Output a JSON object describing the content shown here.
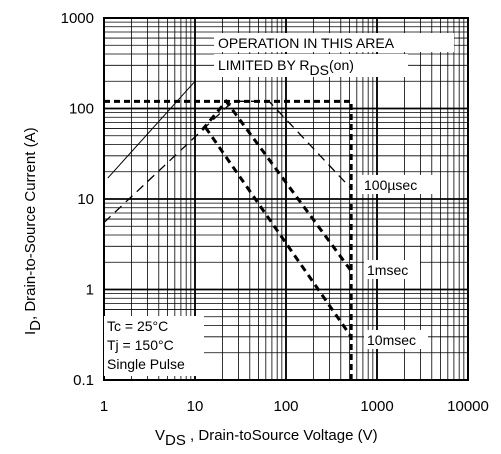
{
  "chart_data": {
    "type": "line",
    "x_scale": "log",
    "y_scale": "log",
    "xlim": [
      1,
      10000
    ],
    "ylim": [
      0.1,
      1000
    ],
    "x_ticks": [
      "1",
      "10",
      "100",
      "1000",
      "10000"
    ],
    "y_ticks": [
      "0.1",
      "1",
      "10",
      "100",
      "1000"
    ],
    "xlabel": {
      "main": "V",
      "sub": "DS",
      "rest": " , Drain-toSource Voltage (V)"
    },
    "ylabel": {
      "main": "I",
      "sub": "D",
      "rest": ",  Drain-to-Source Current (A)"
    },
    "grid": true,
    "annotation": {
      "line1": "OPERATION IN THIS AREA",
      "line2_main": "LIMITED BY R",
      "line2_sub": "DS",
      "line2_rest": "(on)"
    },
    "conditions": [
      "Tc = 25°C",
      "Tj = 150°C",
      "Single Pulse"
    ],
    "current_limit": {
      "y": 120,
      "x": [
        1,
        520
      ]
    },
    "voltage_limit": {
      "x": 520,
      "y": [
        0.1,
        120
      ]
    },
    "series": [
      {
        "name": "100µsec",
        "style": "thin-dash",
        "points": [
          [
            1,
            5.5
          ],
          [
            26,
            120
          ],
          [
            65,
            120
          ],
          [
            520,
            13
          ]
        ]
      },
      {
        "name": "1msec",
        "style": "thick-dash",
        "points": [
          [
            12,
            58
          ],
          [
            22,
            120
          ],
          [
            520,
            1.6
          ]
        ]
      },
      {
        "name": "10msec",
        "style": "thick-dash",
        "points": [
          [
            13,
            62
          ],
          [
            520,
            0.3
          ]
        ]
      },
      {
        "name": "",
        "style": "thin-solid",
        "points": [
          [
            1.1,
            17
          ],
          [
            10,
            200
          ]
        ]
      }
    ]
  }
}
